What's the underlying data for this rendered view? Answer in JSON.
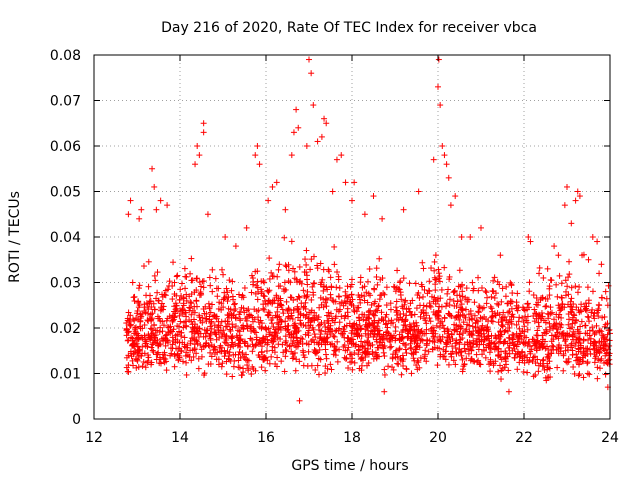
{
  "chart_data": {
    "type": "scatter",
    "title": "Day 216 of 2020, Rate Of TEC Index for receiver vbca",
    "xlabel": "GPS time / hours",
    "ylabel": "ROTI / TECUs",
    "xlim": [
      12,
      24
    ],
    "ylim": [
      0,
      0.08
    ],
    "grid": true,
    "x_ticks": [
      12,
      14,
      16,
      18,
      20,
      22,
      24
    ],
    "x_tick_labels": [
      "12",
      "14",
      "16",
      "18",
      "20",
      "22",
      "24"
    ],
    "y_ticks": [
      0,
      0.01,
      0.02,
      0.03,
      0.04,
      0.05,
      0.06,
      0.07,
      0.08
    ],
    "y_tick_labels": [
      "0",
      "0.01",
      "0.02",
      "0.03",
      "0.04",
      "0.05",
      "0.06",
      "0.07",
      "0.08"
    ],
    "marker": "+",
    "color": "#ff0000",
    "data_x_range": [
      12.75,
      24.0
    ],
    "series": [
      {
        "name": "ROTI",
        "points": [
          [
            12.8,
            0.045
          ],
          [
            12.85,
            0.048
          ],
          [
            12.9,
            0.03
          ],
          [
            12.95,
            0.02
          ],
          [
            13.05,
            0.044
          ],
          [
            13.1,
            0.046
          ],
          [
            13.35,
            0.055
          ],
          [
            13.4,
            0.051
          ],
          [
            13.45,
            0.046
          ],
          [
            13.55,
            0.048
          ],
          [
            13.7,
            0.047
          ],
          [
            14.35,
            0.056
          ],
          [
            14.4,
            0.06
          ],
          [
            14.45,
            0.058
          ],
          [
            14.55,
            0.063
          ],
          [
            14.55,
            0.065
          ],
          [
            14.65,
            0.045
          ],
          [
            14.75,
            0.028
          ],
          [
            15.05,
            0.04
          ],
          [
            15.3,
            0.038
          ],
          [
            15.55,
            0.042
          ],
          [
            15.75,
            0.058
          ],
          [
            15.8,
            0.06
          ],
          [
            15.85,
            0.056
          ],
          [
            16.05,
            0.048
          ],
          [
            16.15,
            0.051
          ],
          [
            16.25,
            0.052
          ],
          [
            16.45,
            0.046
          ],
          [
            16.6,
            0.058
          ],
          [
            16.65,
            0.063
          ],
          [
            16.7,
            0.068
          ],
          [
            16.75,
            0.064
          ],
          [
            16.78,
            0.004
          ],
          [
            16.95,
            0.06
          ],
          [
            17.0,
            0.079
          ],
          [
            17.05,
            0.076
          ],
          [
            17.1,
            0.069
          ],
          [
            17.2,
            0.061
          ],
          [
            17.3,
            0.062
          ],
          [
            17.35,
            0.066
          ],
          [
            17.4,
            0.065
          ],
          [
            17.55,
            0.05
          ],
          [
            17.65,
            0.057
          ],
          [
            17.75,
            0.058
          ],
          [
            17.85,
            0.052
          ],
          [
            18.0,
            0.048
          ],
          [
            18.05,
            0.052
          ],
          [
            18.3,
            0.045
          ],
          [
            18.5,
            0.049
          ],
          [
            18.7,
            0.044
          ],
          [
            18.75,
            0.006
          ],
          [
            19.2,
            0.046
          ],
          [
            19.55,
            0.05
          ],
          [
            19.9,
            0.057
          ],
          [
            20.0,
            0.073
          ],
          [
            20.02,
            0.079
          ],
          [
            20.05,
            0.069
          ],
          [
            20.1,
            0.06
          ],
          [
            20.15,
            0.058
          ],
          [
            20.2,
            0.056
          ],
          [
            20.25,
            0.053
          ],
          [
            20.3,
            0.047
          ],
          [
            20.4,
            0.049
          ],
          [
            20.55,
            0.04
          ],
          [
            20.75,
            0.04
          ],
          [
            21.0,
            0.042
          ],
          [
            21.45,
            0.036
          ],
          [
            21.65,
            0.006
          ],
          [
            22.1,
            0.04
          ],
          [
            22.15,
            0.039
          ],
          [
            22.35,
            0.032
          ],
          [
            22.45,
            0.031
          ],
          [
            22.55,
            0.033
          ],
          [
            22.7,
            0.038
          ],
          [
            22.8,
            0.036
          ],
          [
            22.95,
            0.047
          ],
          [
            23.0,
            0.051
          ],
          [
            23.1,
            0.043
          ],
          [
            23.2,
            0.048
          ],
          [
            23.25,
            0.05
          ],
          [
            23.3,
            0.049
          ],
          [
            23.35,
            0.036
          ],
          [
            23.5,
            0.035
          ],
          [
            23.6,
            0.04
          ],
          [
            23.7,
            0.039
          ],
          [
            23.8,
            0.034
          ],
          [
            23.9,
            0.028
          ],
          [
            23.95,
            0.025
          ],
          [
            23.95,
            0.007
          ]
        ]
      }
    ],
    "background_density": {
      "note": "Dense cloud of ROTI samples between roughly 0.005 and 0.035 TECUs across the full time span",
      "x": [
        12.75,
        13.0,
        13.5,
        14.0,
        14.5,
        15.0,
        15.5,
        16.0,
        16.5,
        17.0,
        17.5,
        18.0,
        18.5,
        19.0,
        19.5,
        20.0,
        20.5,
        21.0,
        21.5,
        22.0,
        22.5,
        23.0,
        23.5,
        24.0
      ],
      "median": [
        0.016,
        0.018,
        0.018,
        0.019,
        0.02,
        0.019,
        0.018,
        0.02,
        0.021,
        0.021,
        0.02,
        0.019,
        0.019,
        0.018,
        0.019,
        0.021,
        0.02,
        0.019,
        0.018,
        0.017,
        0.017,
        0.019,
        0.017,
        0.016
      ],
      "lower": [
        0.01,
        0.01,
        0.01,
        0.009,
        0.009,
        0.009,
        0.008,
        0.009,
        0.009,
        0.009,
        0.009,
        0.009,
        0.009,
        0.009,
        0.009,
        0.01,
        0.009,
        0.009,
        0.008,
        0.008,
        0.008,
        0.009,
        0.008,
        0.008
      ],
      "upper": [
        0.026,
        0.03,
        0.032,
        0.033,
        0.035,
        0.033,
        0.032,
        0.034,
        0.037,
        0.038,
        0.036,
        0.034,
        0.033,
        0.032,
        0.034,
        0.038,
        0.035,
        0.033,
        0.031,
        0.03,
        0.031,
        0.034,
        0.031,
        0.028
      ]
    }
  }
}
